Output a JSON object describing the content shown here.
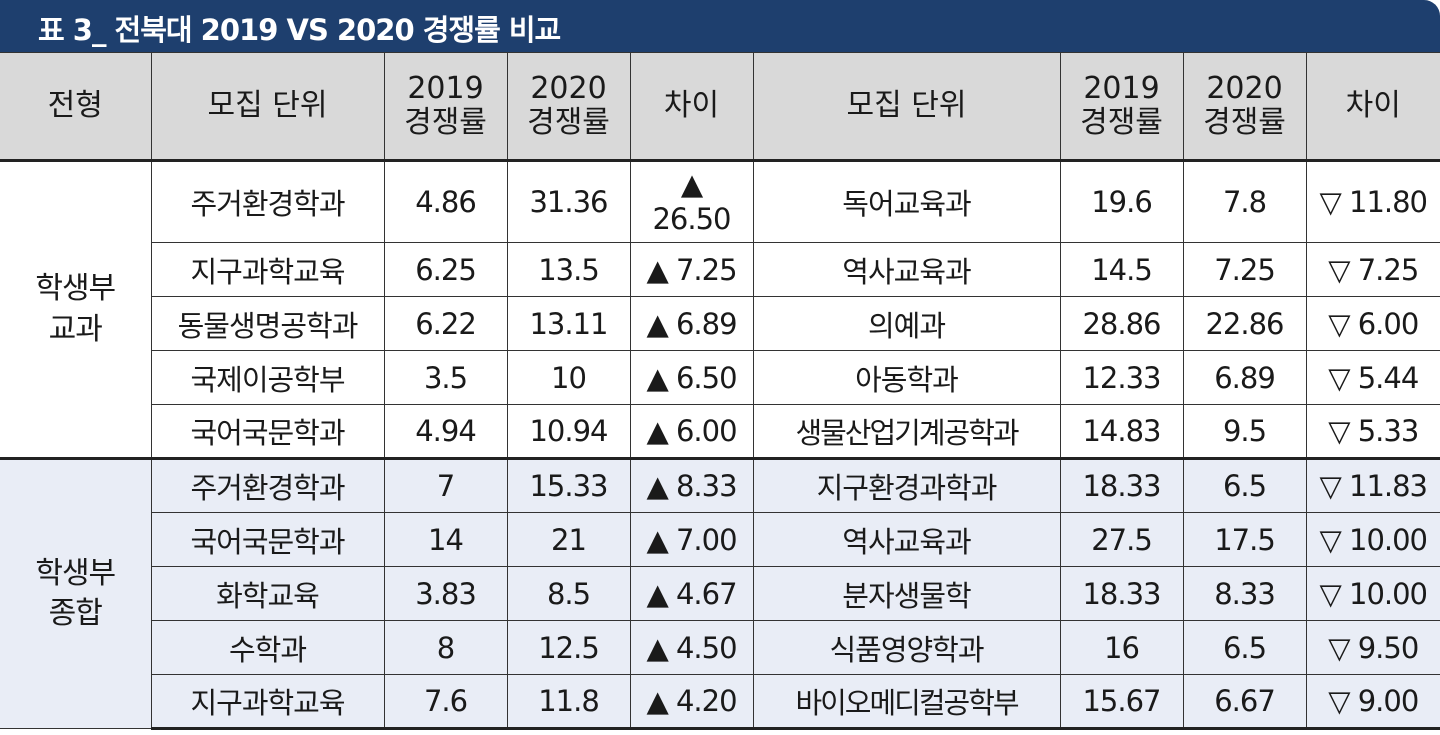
{
  "title": "표 3_ 전북대 2019 VS 2020 경쟁률 비교",
  "headers": {
    "type": "전형",
    "unit": "모집 단위",
    "y2019_a": "2019",
    "y2019_b": "경쟁률",
    "y2020_a": "2020",
    "y2020_b": "경쟁률",
    "diff": "차이"
  },
  "groups": [
    {
      "name_1": "학생부",
      "name_2": "교과",
      "rows": [
        {
          "lu": "주거환경학과",
          "l19": "4.86",
          "l20": "31.36",
          "ld_a": "▲",
          "ld_b": "26.50",
          "ru": "독어교육과",
          "r19": "19.6",
          "r20": "7.8",
          "rd": "▽ 11.80"
        },
        {
          "lu": "지구과학교육",
          "l19": "6.25",
          "l20": "13.5",
          "ld": "▲ 7.25",
          "ru": "역사교육과",
          "r19": "14.5",
          "r20": "7.25",
          "rd": "▽ 7.25"
        },
        {
          "lu": "동물생명공학과",
          "l19": "6.22",
          "l20": "13.11",
          "ld": "▲ 6.89",
          "ru": "의예과",
          "r19": "28.86",
          "r20": "22.86",
          "rd": "▽ 6.00"
        },
        {
          "lu": "국제이공학부",
          "l19": "3.5",
          "l20": "10",
          "ld": "▲ 6.50",
          "ru": "아동학과",
          "r19": "12.33",
          "r20": "6.89",
          "rd": "▽ 5.44"
        },
        {
          "lu": "국어국문학과",
          "l19": "4.94",
          "l20": "10.94",
          "ld": "▲ 6.00",
          "ru": "생물산업기계공학과",
          "r19": "14.83",
          "r20": "9.5",
          "rd": "▽ 5.33"
        }
      ]
    },
    {
      "name_1": "학생부",
      "name_2": "종합",
      "rows": [
        {
          "lu": "주거환경학과",
          "l19": "7",
          "l20": "15.33",
          "ld": "▲ 8.33",
          "ru": "지구환경과학과",
          "r19": "18.33",
          "r20": "6.5",
          "rd": "▽ 11.83"
        },
        {
          "lu": "국어국문학과",
          "l19": "14",
          "l20": "21",
          "ld": "▲ 7.00",
          "ru": "역사교육과",
          "r19": "27.5",
          "r20": "17.5",
          "rd": "▽ 10.00"
        },
        {
          "lu": "화학교육",
          "l19": "3.83",
          "l20": "8.5",
          "ld": "▲ 4.67",
          "ru": "분자생물학",
          "r19": "18.33",
          "r20": "8.33",
          "rd": "▽ 10.00"
        },
        {
          "lu": "수학과",
          "l19": "8",
          "l20": "12.5",
          "ld": "▲ 4.50",
          "ru": "식품영양학과",
          "r19": "16",
          "r20": "6.5",
          "rd": "▽ 9.50"
        },
        {
          "lu": "지구과학교육",
          "l19": "7.6",
          "l20": "11.8",
          "ld": "▲ 4.20",
          "ru": "바이오메디컬공학부",
          "r19": "15.67",
          "r20": "6.67",
          "rd": "▽ 9.00"
        }
      ]
    }
  ]
}
